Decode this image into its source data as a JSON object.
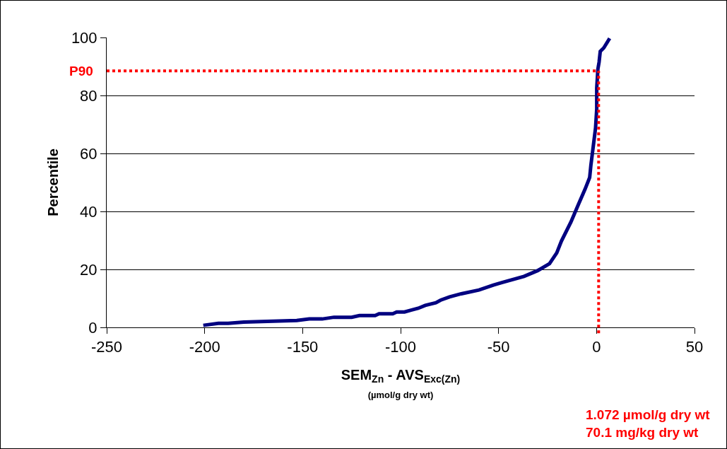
{
  "chart_data": {
    "type": "line",
    "xlabel": "SEM$_{Zn}$ - AVS$_{Exc(Zn)}$\n(µmol/g dry wt)",
    "ylabel": "Percentile",
    "xlim": [
      -250,
      50
    ],
    "xticks": [
      -250,
      -200,
      -150,
      -100,
      -50,
      0,
      50
    ],
    "ylim": [
      0,
      100
    ],
    "yticks": [
      0,
      20,
      40,
      60,
      80,
      100
    ],
    "grid": "y",
    "marker": "none",
    "line_style": "solid",
    "series": [
      {
        "color": "#000080",
        "x": [
          -200.7,
          -193,
          -188,
          -180,
          -153,
          -146.6,
          -140,
          -134,
          -125,
          -121,
          -113,
          -111,
          -104,
          -102,
          -98,
          -95,
          -91,
          -87.4,
          -82,
          -79.6,
          -75,
          -69,
          -60,
          -52.6,
          -48,
          -37,
          -30,
          -24,
          -20.3,
          -17.9,
          -13.1,
          -9.5,
          -5.9,
          -3.5,
          -2.9,
          -1.7,
          -0.5,
          0.1,
          0.1,
          0.7,
          1.3,
          1.9,
          3.7,
          6.7
        ],
        "values": [
          0.7,
          1.4,
          1.4,
          1.8,
          2.4,
          2.9,
          2.9,
          3.5,
          3.5,
          4.1,
          4.1,
          4.7,
          4.7,
          5.3,
          5.3,
          5.9,
          6.6,
          7.6,
          8.5,
          9.4,
          10.5,
          11.6,
          12.9,
          14.6,
          15.5,
          17.6,
          19.6,
          22,
          25.7,
          29.8,
          36.3,
          42,
          47.6,
          51.7,
          55.8,
          62.3,
          68.8,
          75.3,
          82.6,
          89.1,
          91.5,
          95.2,
          96.4,
          99.7
        ]
      }
    ],
    "ref_lines": [
      {
        "axis": "y",
        "value": 88.5,
        "label": "P90",
        "color": "#ff0000",
        "line_style": "dotted"
      },
      {
        "axis": "x",
        "value": 1.072,
        "label": "1.072 µmol/g dry wt\n70.1 mg/kg dry wt",
        "color": "#ff0000",
        "line_style": "dotted"
      }
    ]
  }
}
